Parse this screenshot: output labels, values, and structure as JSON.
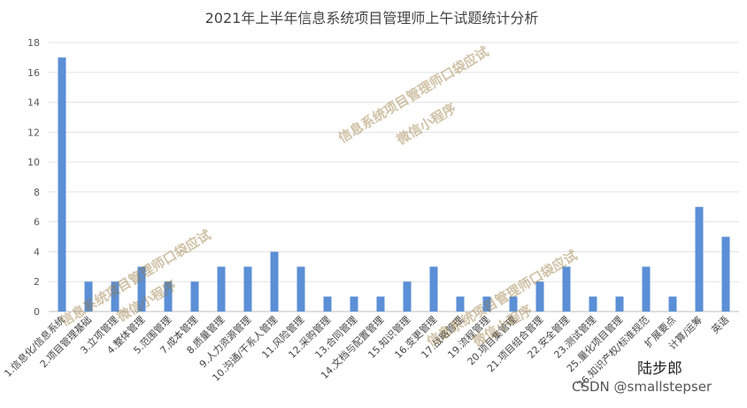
{
  "chart_data": {
    "type": "bar",
    "title": "2021年上半年信息系统项目管理师上午试题统计分析",
    "categories": [
      "1.信息化/信息系统",
      "2.项目管理基础",
      "3.立项管理",
      "4.整体管理",
      "5.范围管理",
      "7.成本管理",
      "8.质量管理",
      "9.人力资源管理",
      "10.沟通/干系人管理",
      "11.风险管理",
      "12.采购管理",
      "13.合同管理",
      "14.文档与配置管理",
      "15.知识管理",
      "16.变更管理",
      "17.战略管理",
      "19.流程管理",
      "20.项目集管理",
      "21.项目组合管理",
      "22.安全管理",
      "23.测试管理",
      "25.量化项目管理",
      "26.知识产权/标准规范",
      "扩展要点",
      "计算/运筹",
      "英语"
    ],
    "values": [
      17,
      2,
      2,
      3,
      2,
      2,
      3,
      3,
      4,
      3,
      1,
      1,
      1,
      2,
      3,
      1,
      1,
      1,
      2,
      3,
      1,
      1,
      3,
      1,
      7,
      5
    ],
    "ylim": [
      0,
      18
    ],
    "yticks": [
      0,
      2,
      4,
      6,
      8,
      10,
      12,
      14,
      16,
      18
    ],
    "grid": true,
    "bar_color": "#5b8fd6"
  },
  "watermarks": [
    "信息系统项目管理师口袋应试",
    "微信小程序"
  ],
  "brand": "陆步郎",
  "credit": "CSDN @smallstepser"
}
